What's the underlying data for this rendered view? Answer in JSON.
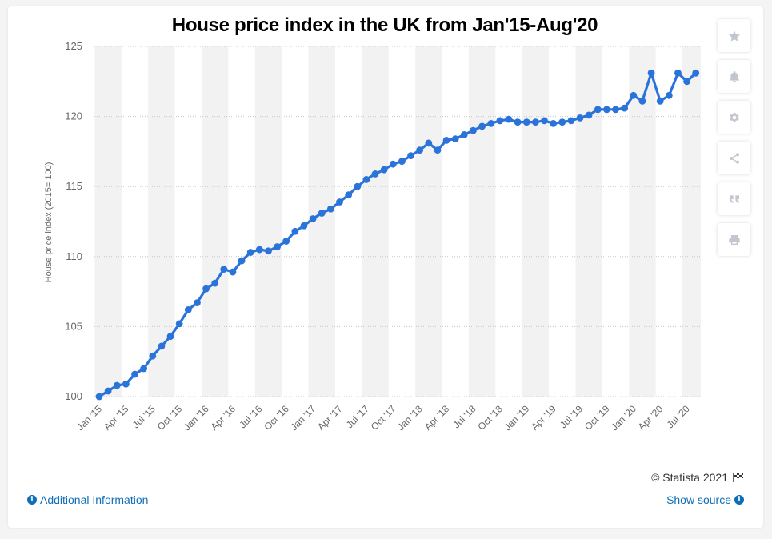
{
  "chart_data": {
    "type": "line",
    "title": "House price index in the UK from Jan'15-Aug'20",
    "ylabel": "House price index (2015= 100)",
    "xlabel": "",
    "ylim": [
      100,
      125
    ],
    "yticks": [
      100,
      105,
      110,
      115,
      120,
      125
    ],
    "grid": true,
    "legend": "none",
    "x_tick_labels": [
      "Jan '15",
      "Apr '15",
      "Jul '15",
      "Oct '15",
      "Jan '16",
      "Apr '16",
      "Jul '16",
      "Oct '16",
      "Jan '17",
      "Apr '17",
      "Jul '17",
      "Oct '17",
      "Jan '18",
      "Apr '18",
      "Jul '18",
      "Oct '18",
      "Jan '19",
      "Apr '19",
      "Jul '19",
      "Oct '19",
      "Jan '20",
      "Apr '20",
      "Jul '20"
    ],
    "series": [
      {
        "color": "#2a73d9",
        "x": [
          "Jan '15",
          "Feb '15",
          "Mar '15",
          "Apr '15",
          "May '15",
          "Jun '15",
          "Jul '15",
          "Aug '15",
          "Sep '15",
          "Oct '15",
          "Nov '15",
          "Dec '15",
          "Jan '16",
          "Feb '16",
          "Mar '16",
          "Apr '16",
          "May '16",
          "Jun '16",
          "Jul '16",
          "Aug '16",
          "Sep '16",
          "Oct '16",
          "Nov '16",
          "Dec '16",
          "Jan '17",
          "Feb '17",
          "Mar '17",
          "Apr '17",
          "May '17",
          "Jun '17",
          "Jul '17",
          "Aug '17",
          "Sep '17",
          "Oct '17",
          "Nov '17",
          "Dec '17",
          "Jan '18",
          "Feb '18",
          "Mar '18",
          "Apr '18",
          "May '18",
          "Jun '18",
          "Jul '18",
          "Aug '18",
          "Sep '18",
          "Oct '18",
          "Nov '18",
          "Dec '18",
          "Jan '19",
          "Feb '19",
          "Mar '19",
          "Apr '19",
          "May '19",
          "Jun '19",
          "Jul '19",
          "Aug '19",
          "Sep '19",
          "Oct '19",
          "Nov '19",
          "Dec '19",
          "Jan '20",
          "Feb '20",
          "Mar '20",
          "Apr '20",
          "May '20",
          "Jun '20",
          "Jul '20",
          "Aug '20"
        ],
        "values": [
          100.0,
          100.4,
          100.8,
          100.9,
          101.6,
          102.0,
          102.9,
          103.6,
          104.3,
          105.2,
          106.2,
          106.7,
          107.7,
          108.1,
          109.1,
          108.9,
          109.7,
          110.3,
          110.5,
          110.4,
          110.7,
          111.1,
          111.8,
          112.2,
          112.7,
          113.1,
          113.4,
          113.9,
          114.4,
          115.0,
          115.5,
          115.9,
          116.2,
          116.6,
          116.8,
          117.2,
          117.6,
          118.1,
          117.6,
          118.3,
          118.4,
          118.7,
          119.0,
          119.3,
          119.5,
          119.7,
          119.8,
          119.6,
          119.6,
          119.6,
          119.7,
          119.5,
          119.6,
          119.7,
          119.9,
          120.1,
          120.5,
          120.5,
          120.5,
          120.6,
          121.5,
          121.1,
          123.1,
          121.1,
          121.5,
          123.1,
          122.5,
          123.1
        ]
      }
    ]
  },
  "source": {
    "copyright": "© Statista 2021",
    "additional_info": "Additional Information",
    "show_source": "Show source"
  },
  "tools": {
    "icons": [
      "star-icon",
      "bell-icon",
      "gear-icon",
      "share-icon",
      "quote-icon",
      "print-icon"
    ]
  },
  "colors": {
    "line": "#2a73d9",
    "link": "#0e6fb8",
    "band": "#f2f2f2",
    "grid": "#c8c8c8"
  }
}
